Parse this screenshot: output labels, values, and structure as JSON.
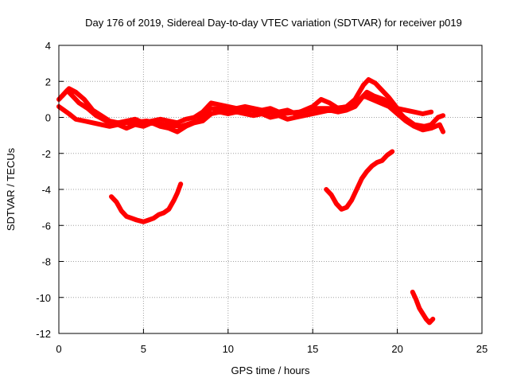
{
  "chart_data": {
    "type": "line",
    "title": "Day 176 of 2019, Sidereal Day-to-day VTEC variation (SDTVAR) for receiver p019",
    "xlabel": "GPS time / hours",
    "ylabel": "SDTVAR / TECUs",
    "xlim": [
      0,
      25
    ],
    "ylim": [
      -12,
      4
    ],
    "xticks": [
      0,
      5,
      10,
      15,
      20,
      25
    ],
    "yticks": [
      4,
      2,
      0,
      -2,
      -4,
      -6,
      -8,
      -10,
      -12
    ],
    "grid": true,
    "color": "#ff0000",
    "series": [
      {
        "name": "trace-main-upper",
        "x": [
          0.0,
          0.3,
          0.6,
          1.0,
          1.5,
          2.0,
          2.5,
          3.0,
          3.5,
          4.0,
          4.5,
          5.0,
          5.5,
          6.0,
          6.5,
          7.0,
          7.5,
          8.0,
          8.5,
          9.0,
          9.5,
          10.0,
          10.5,
          11.0,
          11.5,
          12.0,
          12.5,
          13.0,
          13.5,
          14.0,
          14.5,
          15.0,
          15.5,
          16.0,
          16.5,
          17.0,
          17.5,
          18.0,
          18.3,
          18.7,
          19.0,
          19.5,
          20.0,
          20.5,
          21.0,
          21.5,
          22.0
        ],
        "y": [
          1.0,
          1.3,
          1.6,
          1.4,
          1.0,
          0.4,
          0.1,
          -0.2,
          -0.3,
          -0.2,
          -0.1,
          -0.3,
          -0.2,
          -0.1,
          -0.2,
          -0.3,
          -0.1,
          0.0,
          0.3,
          0.8,
          0.7,
          0.6,
          0.5,
          0.6,
          0.5,
          0.4,
          0.5,
          0.3,
          0.4,
          0.2,
          0.4,
          0.6,
          1.0,
          0.8,
          0.5,
          0.6,
          1.0,
          1.8,
          2.1,
          1.9,
          1.6,
          1.1,
          0.5,
          0.4,
          0.3,
          0.2,
          0.3
        ]
      },
      {
        "name": "trace-main-lower",
        "x": [
          0.0,
          0.3,
          0.6,
          1.0,
          1.5,
          2.0,
          2.5,
          3.0,
          3.5,
          4.0,
          4.5,
          5.0,
          5.5,
          6.0,
          6.5,
          7.0,
          7.5,
          8.0,
          8.5,
          9.0,
          9.5,
          10.0,
          10.5,
          11.0,
          11.5,
          12.0,
          12.5,
          13.0,
          13.5,
          14.0,
          14.5,
          15.0,
          15.5,
          16.0,
          16.5,
          17.0,
          17.5,
          18.0,
          18.5,
          19.0,
          19.5,
          20.0,
          20.5,
          21.0,
          21.5,
          22.0,
          22.5,
          22.7
        ],
        "y": [
          0.6,
          0.4,
          0.2,
          -0.1,
          -0.2,
          -0.3,
          -0.4,
          -0.5,
          -0.4,
          -0.6,
          -0.4,
          -0.5,
          -0.3,
          -0.5,
          -0.6,
          -0.8,
          -0.5,
          -0.3,
          -0.2,
          0.2,
          0.3,
          0.2,
          0.3,
          0.2,
          0.1,
          0.2,
          0.0,
          0.1,
          -0.1,
          0.0,
          0.1,
          0.2,
          0.3,
          0.4,
          0.3,
          0.4,
          0.6,
          1.2,
          1.0,
          0.8,
          0.6,
          0.2,
          -0.2,
          -0.5,
          -0.7,
          -0.6,
          -0.4,
          -0.8
        ]
      },
      {
        "name": "trace-main-mid",
        "x": [
          0.2,
          0.5,
          0.8,
          1.2,
          1.7,
          2.2,
          2.8,
          3.3,
          4.2,
          5.2,
          6.2,
          7.2,
          8.2,
          9.0,
          10.2,
          11.2,
          12.2,
          13.2,
          14.2,
          15.2,
          16.2,
          17.2,
          17.8,
          18.2,
          18.6,
          19.2,
          19.8,
          20.4,
          21.0,
          21.6,
          22.0,
          22.4,
          22.7
        ],
        "y": [
          1.2,
          1.5,
          1.2,
          0.8,
          0.5,
          0.1,
          -0.2,
          -0.3,
          -0.3,
          -0.2,
          -0.4,
          -0.5,
          -0.2,
          0.5,
          0.4,
          0.4,
          0.3,
          0.2,
          0.3,
          0.5,
          0.5,
          0.6,
          1.0,
          1.4,
          1.2,
          1.0,
          0.6,
          0.0,
          -0.4,
          -0.5,
          -0.4,
          0.0,
          0.1
        ]
      },
      {
        "name": "trace-segment-1",
        "x": [
          3.1,
          3.4,
          3.7,
          4.0,
          4.3,
          4.6,
          5.0,
          5.3,
          5.6,
          5.9,
          6.2,
          6.5,
          6.8,
          7.0,
          7.2
        ],
        "y": [
          -4.4,
          -4.7,
          -5.2,
          -5.5,
          -5.6,
          -5.7,
          -5.8,
          -5.7,
          -5.6,
          -5.4,
          -5.3,
          -5.1,
          -4.6,
          -4.2,
          -3.7
        ]
      },
      {
        "name": "trace-segment-2",
        "x": [
          15.8,
          16.1,
          16.4,
          16.7,
          17.0,
          17.3,
          17.6,
          17.9,
          18.2,
          18.5,
          18.8,
          19.1,
          19.4,
          19.7
        ],
        "y": [
          -4.0,
          -4.3,
          -4.8,
          -5.1,
          -5.0,
          -4.6,
          -4.0,
          -3.4,
          -3.0,
          -2.7,
          -2.5,
          -2.4,
          -2.1,
          -1.9
        ]
      },
      {
        "name": "trace-segment-3",
        "x": [
          20.9,
          21.1,
          21.3,
          21.5,
          21.7,
          21.9,
          22.1
        ],
        "y": [
          -9.7,
          -10.1,
          -10.6,
          -10.9,
          -11.2,
          -11.4,
          -11.2
        ]
      }
    ]
  }
}
